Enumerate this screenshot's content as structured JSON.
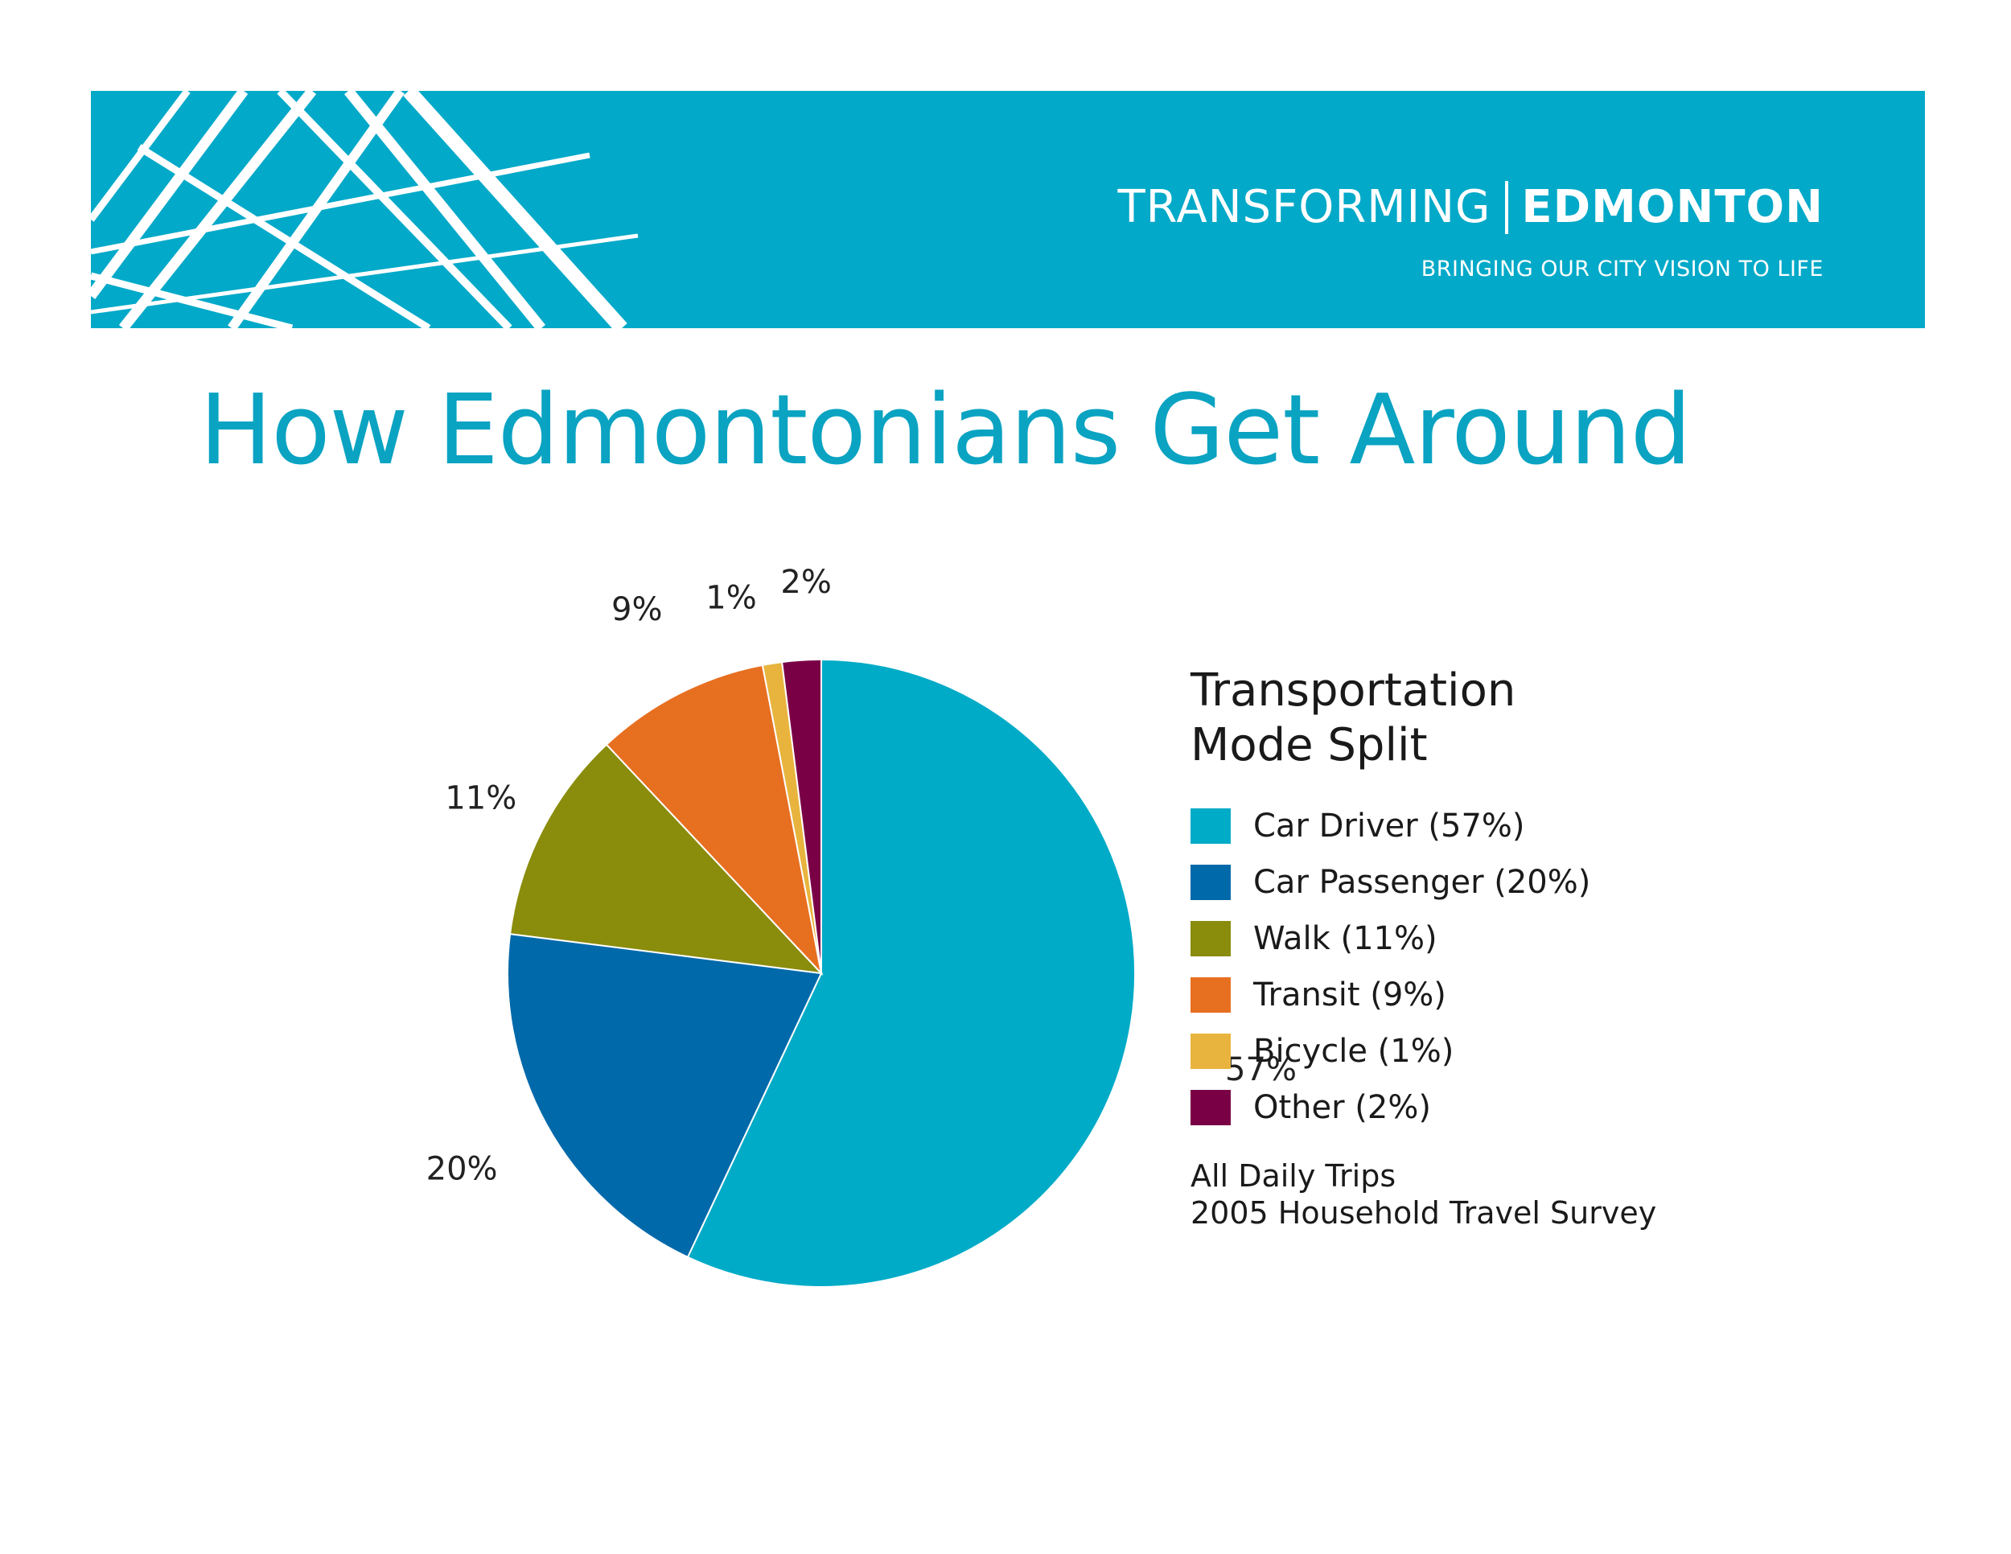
{
  "header": {
    "brand_left": "TRANSFORMING",
    "brand_right": "EDMONTON",
    "tagline": "BRINGING OUR CITY VISION TO LIFE",
    "banner_color": "#03a9c8"
  },
  "page": {
    "title": "How Edmontonians Get Around"
  },
  "legend": {
    "title_line1": "Transportation",
    "title_line2": "Mode Split",
    "items": [
      {
        "label": "Car Driver (57%)",
        "color": "#00abc7"
      },
      {
        "label": "Car Passenger (20%)",
        "color": "#0069aa"
      },
      {
        "label": "Walk (11%)",
        "color": "#8a8c0c"
      },
      {
        "label": "Transit (9%)",
        "color": "#e76f20"
      },
      {
        "label": "Bicycle (1%)",
        "color": "#e8b43e"
      },
      {
        "label": "Other (2%)",
        "color": "#7a0046"
      }
    ],
    "note_line1": "All Daily Trips",
    "note_line2": "2005 Household Travel Survey"
  },
  "chart_data": {
    "type": "pie",
    "title": "Transportation Mode Split",
    "categories": [
      "Car Driver",
      "Car Passenger",
      "Walk",
      "Transit",
      "Bicycle",
      "Other"
    ],
    "values": [
      57,
      20,
      11,
      9,
      1,
      2
    ],
    "data_labels": [
      "57%",
      "20%",
      "11%",
      "9%",
      "1%",
      "2%"
    ],
    "colors": [
      "#00abc7",
      "#0069aa",
      "#8a8c0c",
      "#e76f20",
      "#e8b43e",
      "#7a0046"
    ],
    "start": "12 o'clock",
    "direction": "clockwise",
    "legend_position": "right"
  }
}
